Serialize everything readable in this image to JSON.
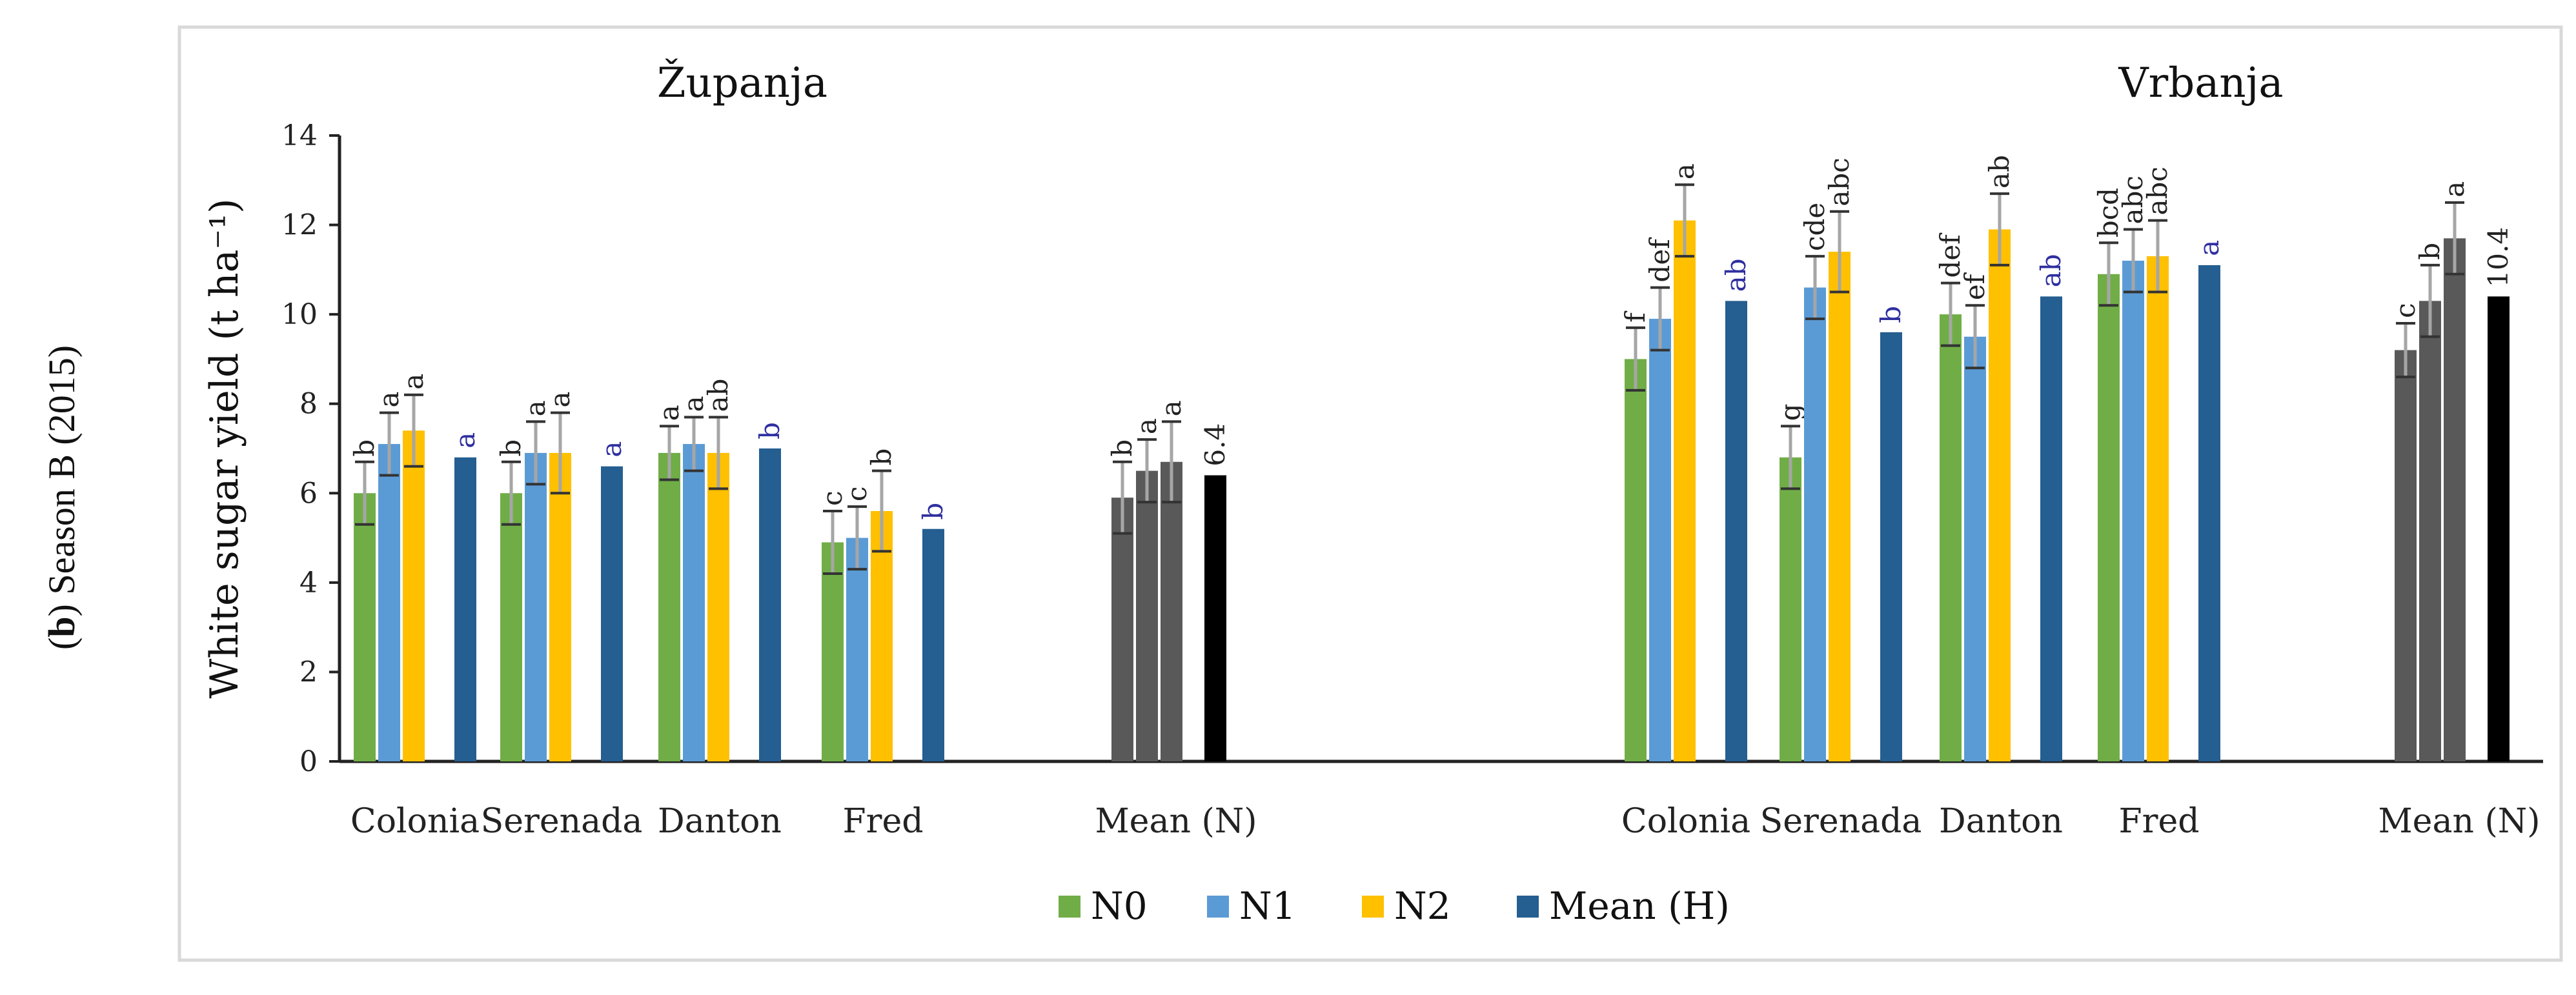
{
  "side_label": {
    "bold": "b",
    "rest": " Season B (2015)"
  },
  "chart_data": {
    "type": "bar",
    "ylabel": "White sugar yield (t ha⁻¹)",
    "ylim": [
      0,
      14
    ],
    "yticks": [
      "0",
      "2",
      "4",
      "6",
      "8",
      "10",
      "12",
      "14"
    ],
    "grid": false,
    "legend_position": "bottom",
    "colors": {
      "N0": "#70ad47",
      "N1": "#5b9bd5",
      "N2": "#ffc000",
      "MeanH": "#255e91",
      "MeanN_bar": "#595959",
      "Overall": "#000000",
      "error": "#a6a6a6",
      "blue_letter": "#2f2fa0"
    },
    "legend": [
      "N0",
      "N1",
      "N2",
      "Mean (H)"
    ],
    "panels": [
      {
        "title": "Županja",
        "groups": [
          {
            "label": "Colonia",
            "values": [
              6.0,
              7.1,
              7.4
            ],
            "errors": [
              0.7,
              0.7,
              0.8
            ],
            "letters": [
              "b",
              "a",
              "a"
            ],
            "mean_h": 6.8,
            "mean_letter": "a"
          },
          {
            "label": "Serenada",
            "values": [
              6.0,
              6.9,
              6.9
            ],
            "errors": [
              0.7,
              0.7,
              0.9
            ],
            "letters": [
              "b",
              "a",
              "a"
            ],
            "mean_h": 6.6,
            "mean_letter": "a"
          },
          {
            "label": "Danton",
            "values": [
              6.9,
              7.1,
              6.9
            ],
            "errors": [
              0.6,
              0.6,
              0.8
            ],
            "letters": [
              "a",
              "a",
              "ab"
            ],
            "mean_h": 7.0,
            "mean_letter": "b"
          },
          {
            "label": "Fred",
            "values": [
              4.9,
              5.0,
              5.6
            ],
            "errors": [
              0.7,
              0.7,
              0.9
            ],
            "letters": [
              "c",
              "c",
              "b"
            ],
            "mean_h": 5.2,
            "mean_letter": "b"
          }
        ],
        "mean_n": {
          "label": "Mean (N)",
          "values": [
            5.9,
            6.5,
            6.7
          ],
          "errors": [
            0.8,
            0.7,
            0.9
          ],
          "letters": [
            "b",
            "a",
            "a"
          ],
          "overall": 6.4,
          "overall_label": "6.4"
        }
      },
      {
        "title": "Vrbanja",
        "groups": [
          {
            "label": "Colonia",
            "values": [
              9.0,
              9.9,
              12.1
            ],
            "errors": [
              0.7,
              0.7,
              0.8
            ],
            "letters": [
              "f",
              "def",
              "a"
            ],
            "mean_h": 10.3,
            "mean_letter": "ab"
          },
          {
            "label": "Serenada",
            "values": [
              6.8,
              10.6,
              11.4
            ],
            "errors": [
              0.7,
              0.7,
              0.9
            ],
            "letters": [
              "g",
              "cde",
              "abc"
            ],
            "mean_h": 9.6,
            "mean_letter": "b"
          },
          {
            "label": "Danton",
            "values": [
              10.0,
              9.5,
              11.9
            ],
            "errors": [
              0.7,
              0.7,
              0.8
            ],
            "letters": [
              "def",
              "ef",
              "ab"
            ],
            "mean_h": 10.4,
            "mean_letter": "ab"
          },
          {
            "label": "Fred",
            "values": [
              10.9,
              11.2,
              11.3
            ],
            "errors": [
              0.7,
              0.7,
              0.8
            ],
            "letters": [
              "bcd",
              "abc",
              "abc"
            ],
            "mean_h": 11.1,
            "mean_letter": "a"
          }
        ],
        "mean_n": {
          "label": "Mean (N)",
          "values": [
            9.2,
            10.3,
            11.7
          ],
          "errors": [
            0.6,
            0.8,
            0.8
          ],
          "letters": [
            "c",
            "b",
            "a"
          ],
          "overall": 10.4,
          "overall_label": "10.4"
        }
      }
    ]
  }
}
